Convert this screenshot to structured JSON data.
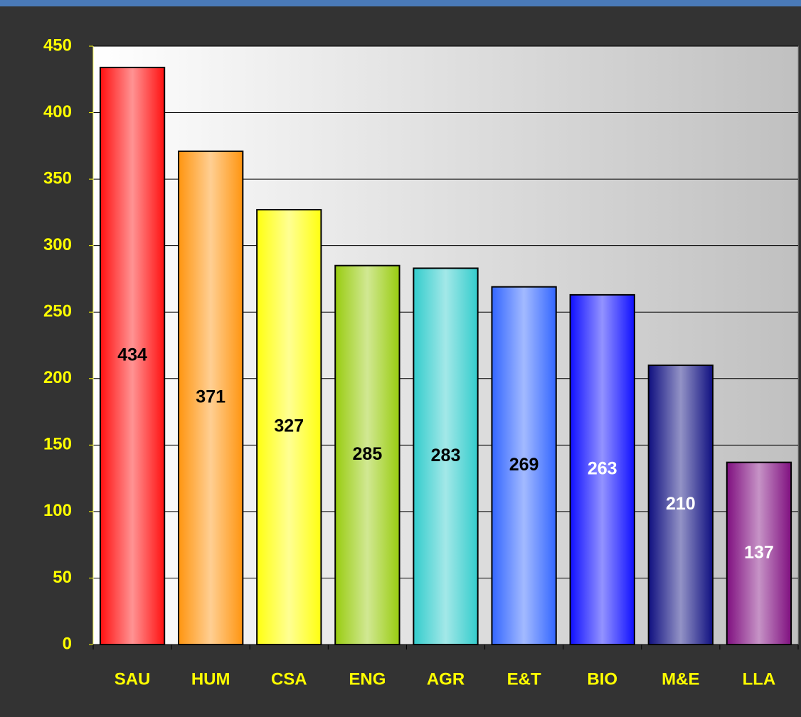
{
  "chart_data": {
    "type": "bar",
    "categories": [
      "SAU",
      "HUM",
      "CSA",
      "ENG",
      "AGR",
      "E&T",
      "BIO",
      "M&E",
      "LLA"
    ],
    "values": [
      434,
      371,
      327,
      285,
      283,
      269,
      263,
      210,
      137
    ],
    "colors": [
      "#ff1010",
      "#ff9510",
      "#ffff10",
      "#99cc10",
      "#33cccc",
      "#3366ff",
      "#1010ff",
      "#101080",
      "#801080"
    ],
    "label_colors": [
      "#000000",
      "#000000",
      "#000000",
      "#000000",
      "#000000",
      "#000000",
      "#ffffff",
      "#ffffff",
      "#ffffff"
    ],
    "ylim": [
      0,
      450
    ],
    "yticks": [
      0,
      50,
      100,
      150,
      200,
      250,
      300,
      350,
      400,
      450
    ],
    "grid": true
  }
}
